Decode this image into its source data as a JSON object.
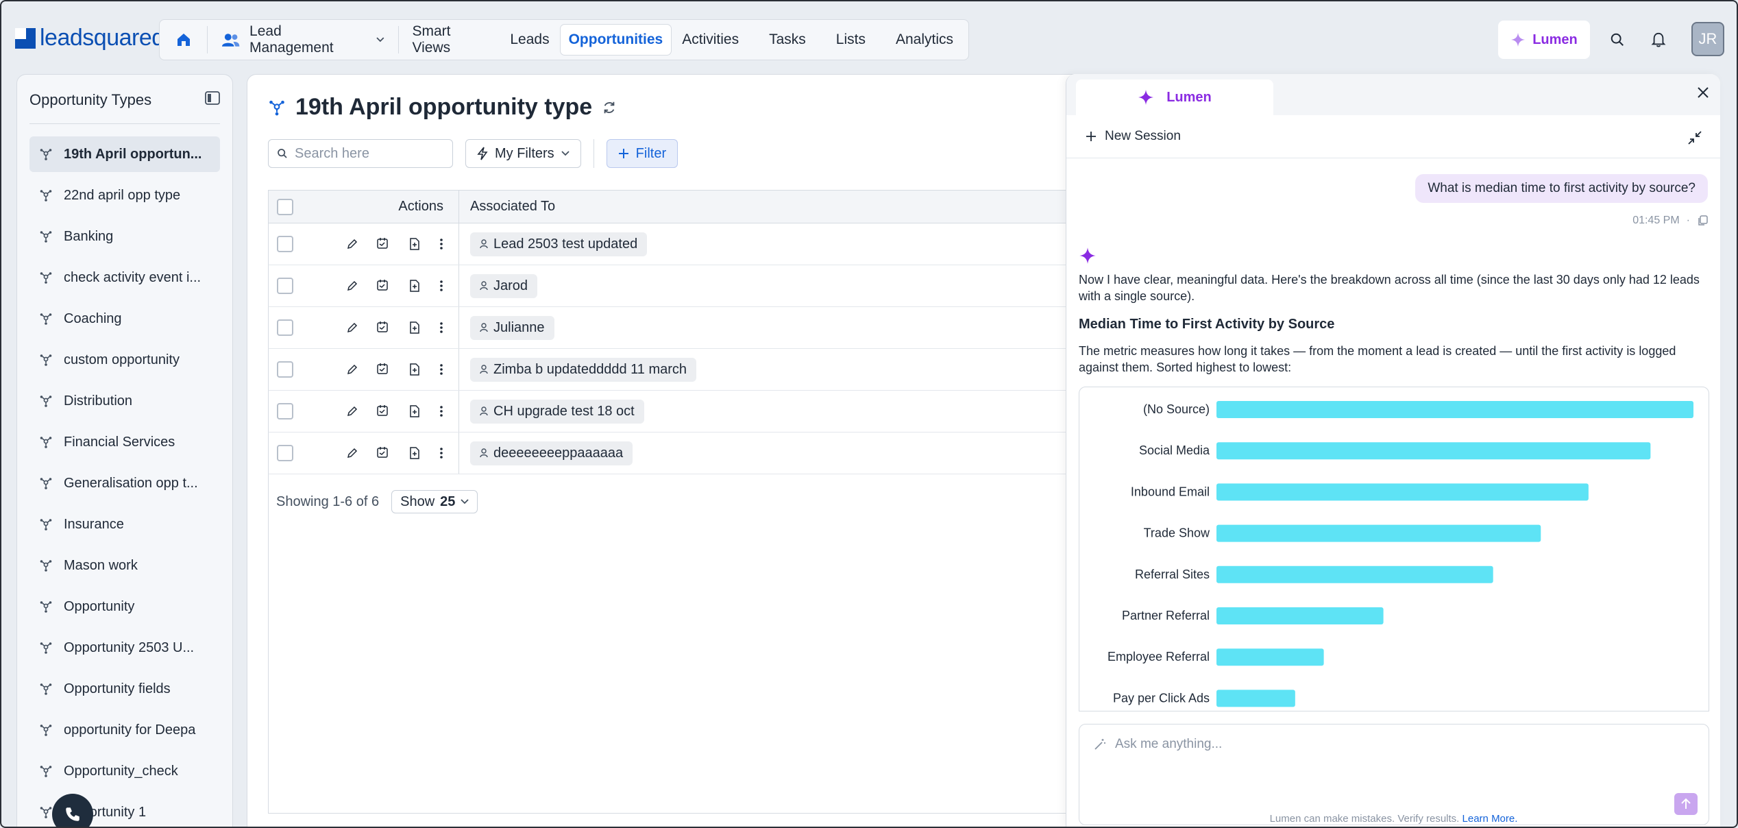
{
  "app": {
    "logo_text": "leadsquared",
    "module_label": "Lead Management",
    "nav_items": [
      "Smart Views",
      "Leads",
      "Opportunities",
      "Activities",
      "Tasks",
      "Lists",
      "Analytics"
    ],
    "active_nav": "Opportunities",
    "lumen_label": "Lumen",
    "avatar_initials": "JR",
    "accent": "#1463d9",
    "lumen_color": "#8a2be2"
  },
  "sidebar": {
    "title": "Opportunity Types",
    "items": [
      "19th April opportun...",
      "22nd april opp type",
      "Banking",
      "check activity event i...",
      "Coaching",
      "custom opportunity",
      "Distribution",
      "Financial Services",
      "Generalisation opp t...",
      "Insurance",
      "Mason work",
      "Opportunity",
      "Opportunity 2503 U...",
      "Opportunity fields",
      "opportunity for Deepa",
      "Opportunity_check",
      "Opportunity 1"
    ],
    "active_index": 0
  },
  "main": {
    "title": "19th April opportunity type",
    "search_placeholder": "Search here",
    "my_filters_label": "My Filters",
    "filter_label": "Filter",
    "columns": {
      "actions": "Actions",
      "associated_to": "Associated To"
    },
    "rows": [
      "Lead 2503 test updated",
      "Jarod",
      "Julianne",
      "Zimba b updateddddd 11 march",
      "CH upgrade test 18 oct",
      "deeeeeeeeppaaaaaa"
    ],
    "pager_text": "Showing 1-6 of 6",
    "show_label": "Show",
    "show_value": "25"
  },
  "lumen": {
    "tab_label": "Lumen",
    "new_session_label": "New Session",
    "user_message": "What is median time to first activity by source?",
    "user_time": "01:45 PM",
    "bot_intro": "Now I have clear, meaningful data. Here's the breakdown across all time (since the last 30 days only had 12 leads with a single source).",
    "bot_heading": "Median Time to First Activity by Source",
    "bot_desc": "The metric measures how long it takes — from the moment a lead is created — until the first activity is logged against them. Sorted highest to lowest:",
    "composer_placeholder": "Ask me anything...",
    "disclaimer": "Lumen can make mistakes. Verify results.",
    "disclaimer_link": "Learn More."
  },
  "chart_data": {
    "type": "bar",
    "orientation": "horizontal",
    "categories": [
      "(No Source)",
      "Social Media",
      "Inbound Email",
      "Trade Show",
      "Referral Sites",
      "Partner Referral",
      "Employee Referral",
      "Pay per Click Ads"
    ],
    "values": [
      100,
      91,
      78,
      68,
      58,
      35,
      22.5,
      16.5
    ],
    "value_scale": "relative (no axis printed)",
    "bar_color": "#5ee3f5",
    "title": "",
    "xlabel": "",
    "ylabel": "",
    "grid": false,
    "legend": "none"
  }
}
